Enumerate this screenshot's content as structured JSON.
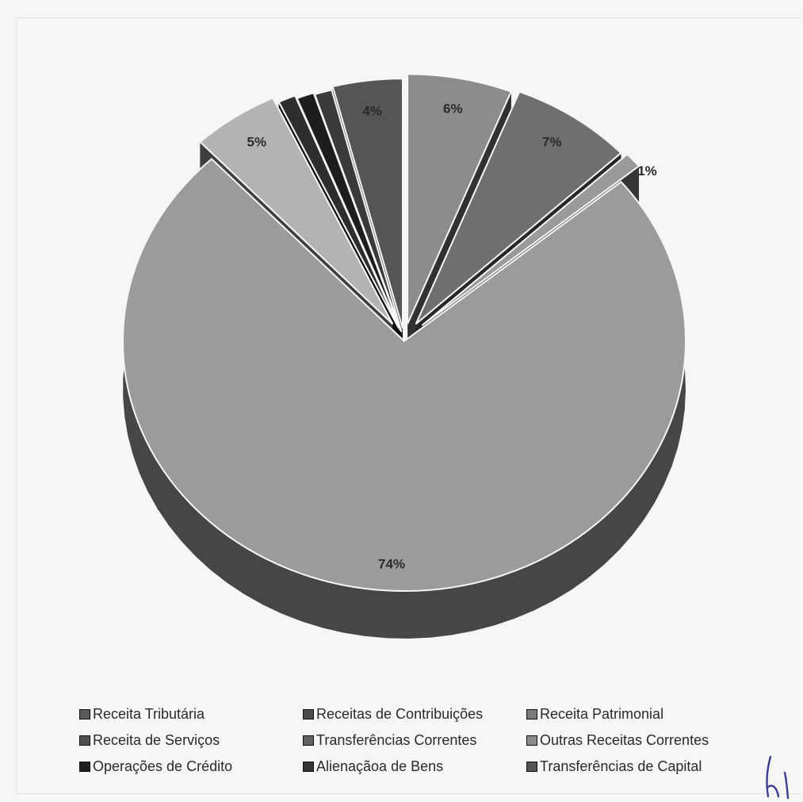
{
  "chart_data": {
    "type": "pie",
    "title": "",
    "style": "3d-exploded",
    "slices": [
      {
        "name": "Receita Tributária",
        "value": 6,
        "label": "6%",
        "color": "#8c8c8c"
      },
      {
        "name": "Receitas de Contribuições",
        "value": 7,
        "label": "7%",
        "color": "#6f6f6f"
      },
      {
        "name": "Receita Patrimonial",
        "value": 1,
        "label": "1%",
        "color": "#9a9a9a"
      },
      {
        "name": "Receita de Serviços",
        "value": 74,
        "label": "74%",
        "color": "#9b9b9b"
      },
      {
        "name": "Transferências Correntes",
        "value": 5,
        "label": "5%",
        "color": "#b3b3b3"
      },
      {
        "name": "Outras Receitas Correntes",
        "value": 1,
        "label": "",
        "color": "#2e2e2e"
      },
      {
        "name": "Operações de Crédito",
        "value": 1,
        "label": "",
        "color": "#1d1d1d"
      },
      {
        "name": "Alienaçãoa de Bens",
        "value": 1,
        "label": "",
        "color": "#3a3a3a"
      },
      {
        "name": "Transferências de Capital",
        "value": 4,
        "label": "4%",
        "color": "#555555"
      }
    ],
    "legend": [
      {
        "label": "Receita Tributária",
        "color": "#5a5a5a"
      },
      {
        "label": "Receitas de Contribuições",
        "color": "#4a4a4a"
      },
      {
        "label": "Receita Patrimonial",
        "color": "#7a7a7a"
      },
      {
        "label": "Receita de Serviços",
        "color": "#4f4f4f"
      },
      {
        "label": "Transferências Correntes",
        "color": "#636363"
      },
      {
        "label": "Outras Receitas Correntes",
        "color": "#8a8a8a"
      },
      {
        "label": "Operações de Crédito",
        "color": "#1e1e1e"
      },
      {
        "label": "Alienaçãoa de Bens",
        "color": "#333333"
      },
      {
        "label": "Transferências de Capital",
        "color": "#555555"
      }
    ],
    "legend_position": "bottom"
  }
}
